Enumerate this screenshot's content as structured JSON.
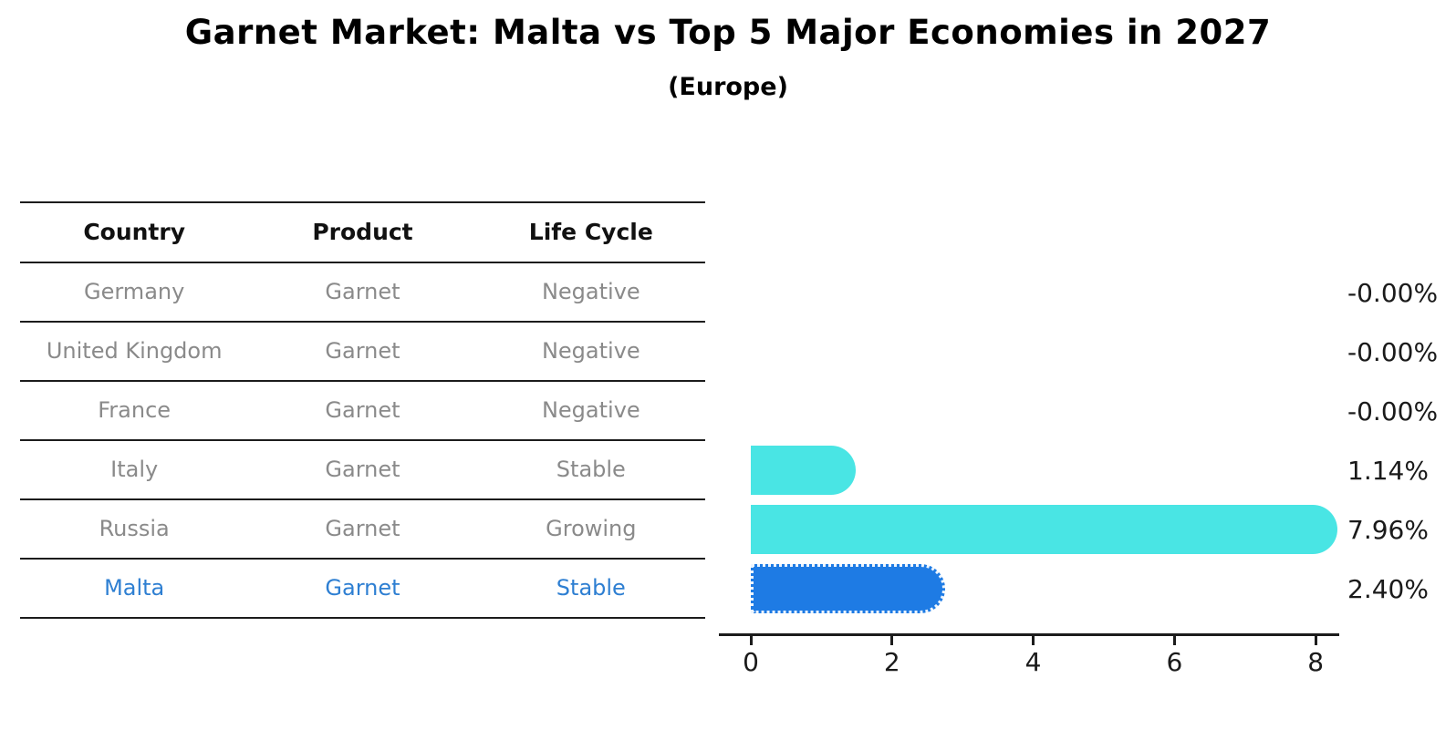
{
  "title": "Garnet Market: Malta vs Top 5 Major Economies in 2027",
  "subtitle": "(Europe)",
  "table": {
    "headers": [
      "Country",
      "Product",
      "Life Cycle"
    ],
    "rows": [
      {
        "country": "Germany",
        "product": "Garnet",
        "life_cycle": "Negative",
        "highlight": false
      },
      {
        "country": "United Kingdom",
        "product": "Garnet",
        "life_cycle": "Negative",
        "highlight": false
      },
      {
        "country": "France",
        "product": "Garnet",
        "life_cycle": "Negative",
        "highlight": false
      },
      {
        "country": "Italy",
        "product": "Garnet",
        "life_cycle": "Stable",
        "highlight": false
      },
      {
        "country": "Russia",
        "product": "Garnet",
        "life_cycle": "Growing",
        "highlight": false
      },
      {
        "country": "Malta",
        "product": "Garnet",
        "life_cycle": "Stable",
        "highlight": true
      }
    ]
  },
  "chart_data": {
    "type": "bar",
    "orientation": "horizontal",
    "title": "Garnet Market: Malta vs Top 5 Major Economies in 2027",
    "subtitle": "(Europe)",
    "categories": [
      "Germany",
      "United Kingdom",
      "France",
      "Italy",
      "Russia",
      "Malta"
    ],
    "values": [
      -0.0,
      -0.0,
      -0.0,
      1.14,
      7.96,
      2.4
    ],
    "value_labels": [
      "-0.00%",
      "-0.00%",
      "-0.00%",
      "1.14%",
      "7.96%",
      "2.40%"
    ],
    "highlight_index": 5,
    "x_ticks": [
      0,
      2,
      4,
      6,
      8
    ],
    "xlim": [
      -0.45,
      8.35
    ],
    "grid": false,
    "legend": "none",
    "xlabel": "",
    "ylabel": "",
    "colors": {
      "default_bar": "#49e5e4",
      "highlight_bar": "#1e7be4",
      "highlight_text": "#2e7fd2",
      "row_text": "#8a8a8a",
      "header_text": "#111111",
      "axis": "#1c1c1c"
    }
  }
}
